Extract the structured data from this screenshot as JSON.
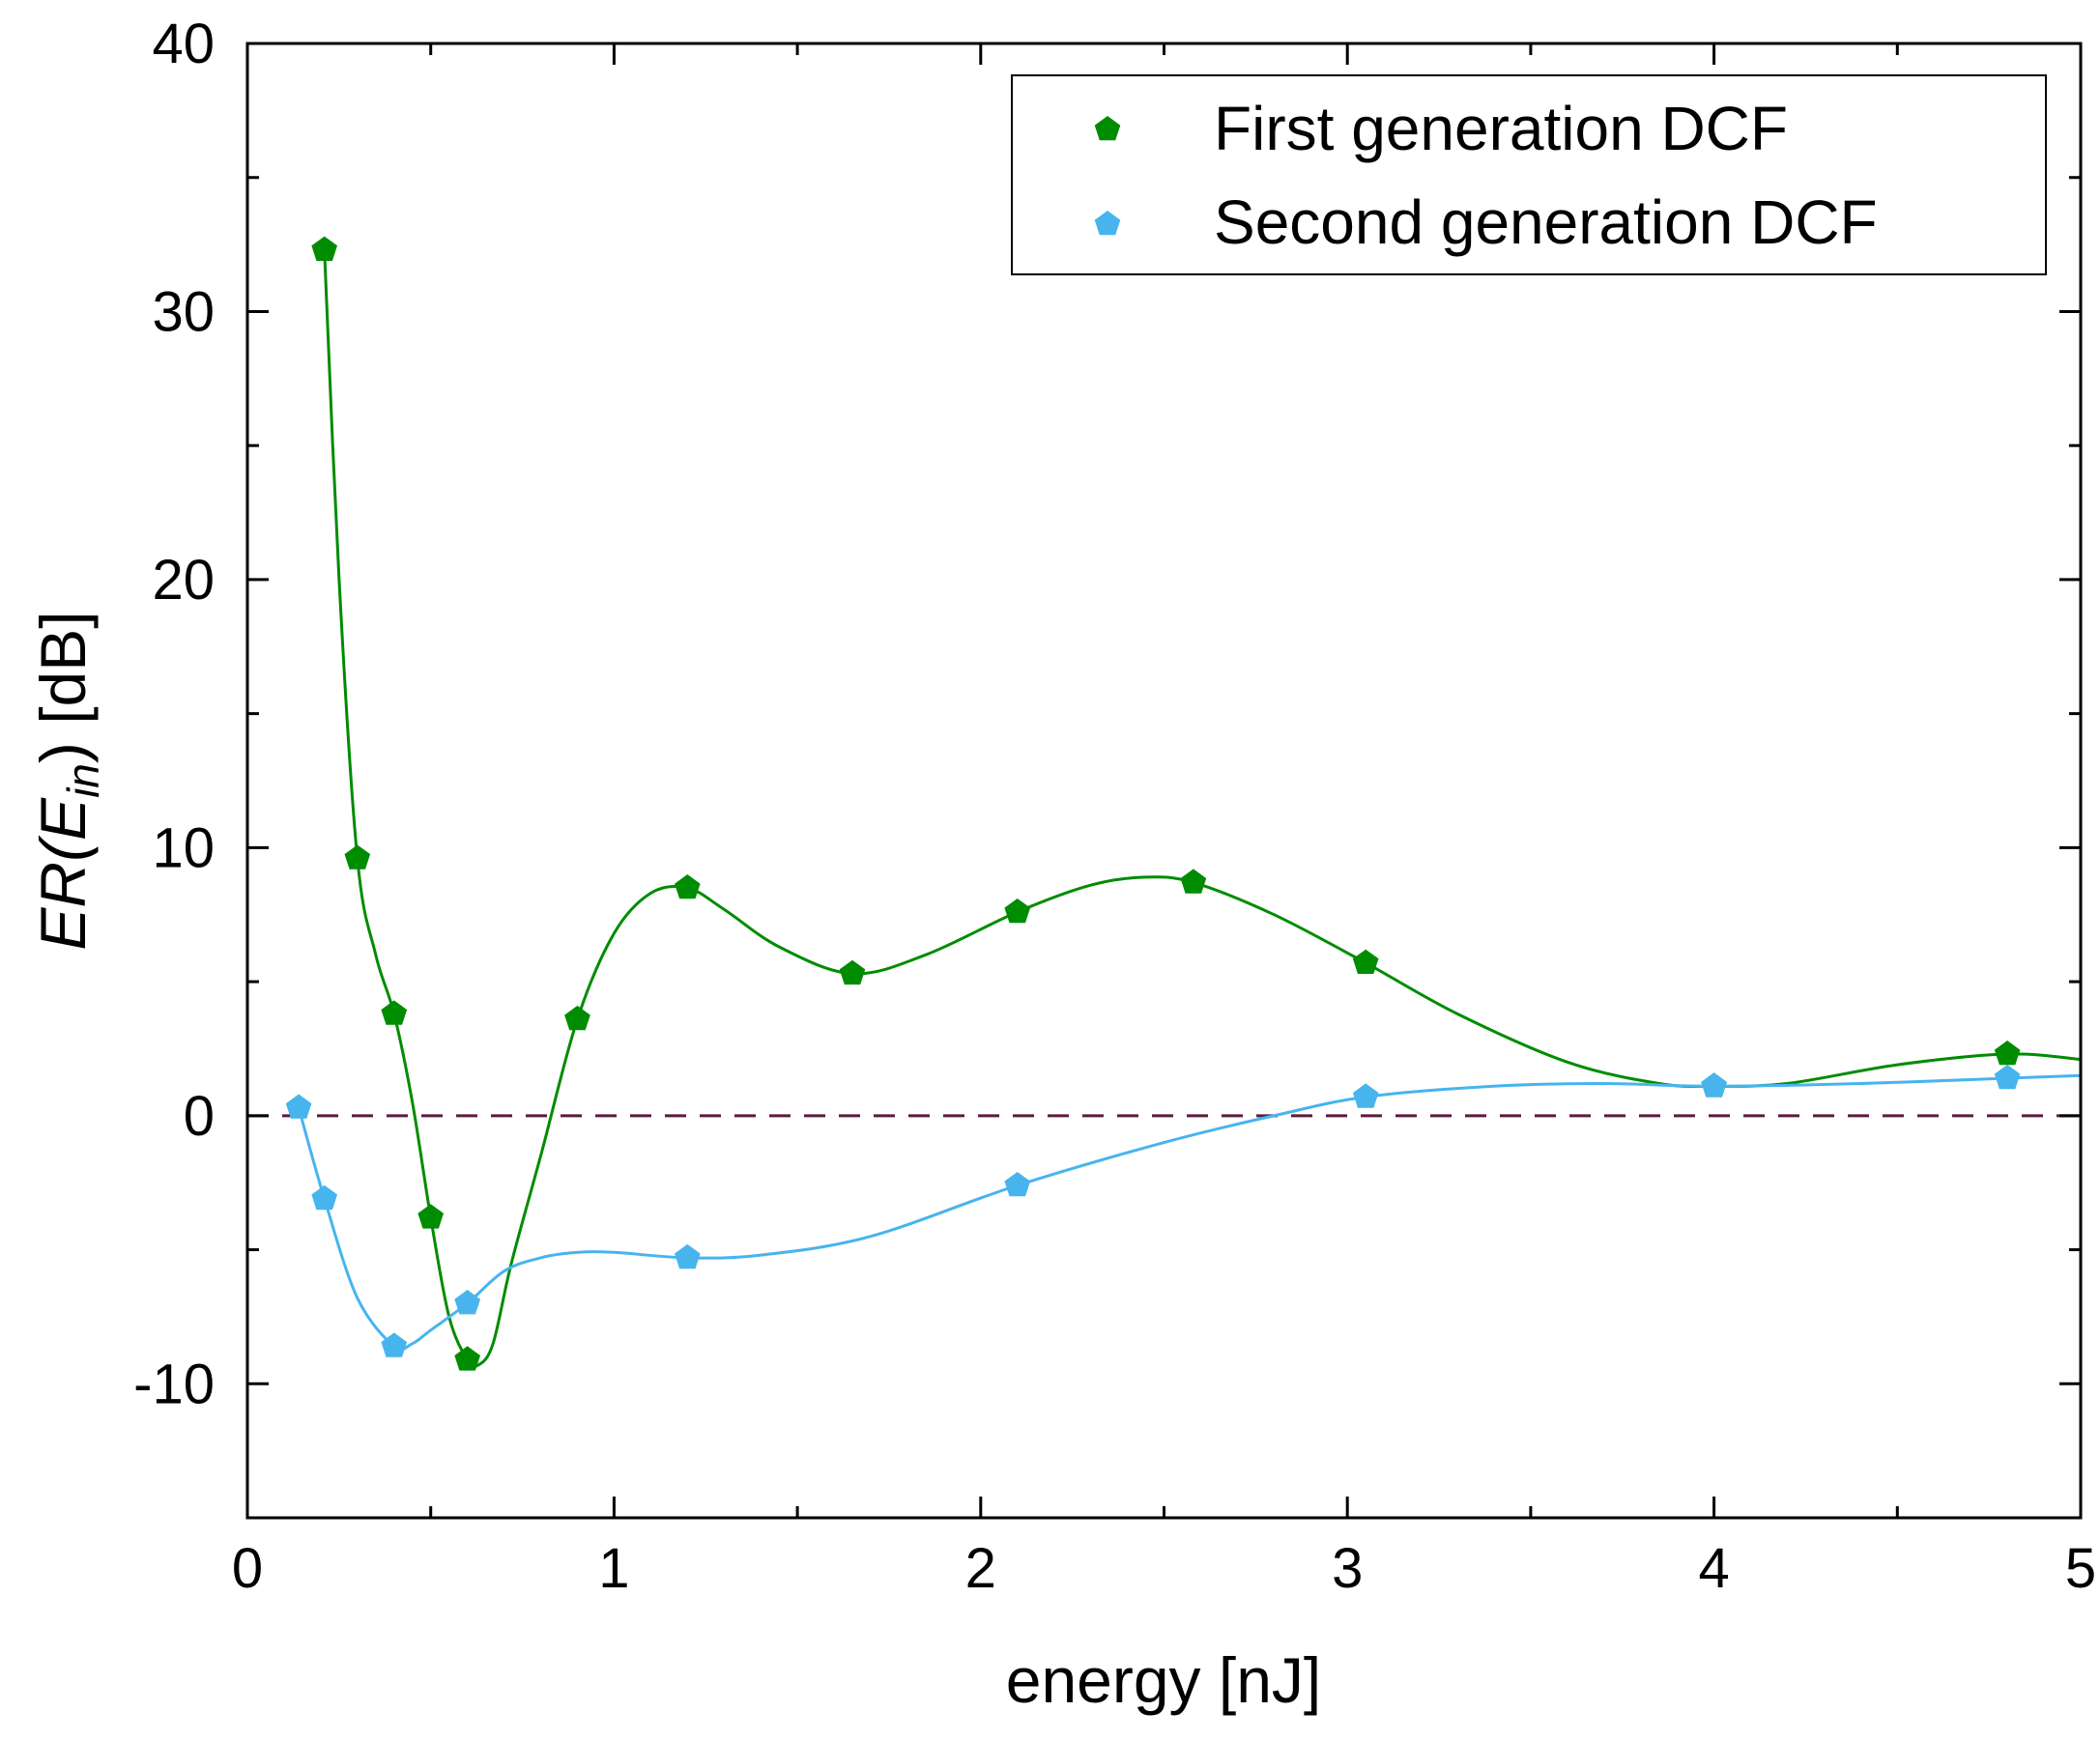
{
  "chart_data": {
    "type": "line",
    "title": "",
    "xlabel": "energy [nJ]",
    "ylabel": {
      "prefix": "ER(E",
      "subscript": "in",
      "suffix": ") [dB]"
    },
    "xlim": [
      0,
      5
    ],
    "ylim": [
      -15,
      40
    ],
    "x_ticks": [
      0,
      1,
      2,
      3,
      4,
      5
    ],
    "x_tick_labels": [
      "0",
      "1",
      "2",
      "3",
      "4",
      "5"
    ],
    "y_ticks": [
      -10,
      0,
      10,
      20,
      30,
      40
    ],
    "y_tick_labels": [
      "-10",
      "0",
      "10",
      "20",
      "30",
      "40"
    ],
    "grid": false,
    "reference_line": {
      "y": 0,
      "style": "dashed",
      "color": "#5c1a3d"
    },
    "legend_position": "top-right",
    "series": [
      {
        "name": "First generation DCF",
        "color": "#008c00",
        "marker": "pentagon",
        "points": [
          [
            0.21,
            32.3
          ],
          [
            0.3,
            9.6
          ],
          [
            0.4,
            3.8
          ],
          [
            0.5,
            -3.8
          ],
          [
            0.6,
            -9.1
          ],
          [
            0.9,
            3.6
          ],
          [
            1.2,
            8.5
          ],
          [
            1.65,
            5.3
          ],
          [
            2.1,
            7.6
          ],
          [
            2.58,
            8.7
          ],
          [
            3.05,
            5.7
          ],
          [
            4.0,
            1.1
          ],
          [
            4.8,
            2.3
          ]
        ],
        "curve": [
          [
            0.21,
            32.3
          ],
          [
            0.25,
            20.0
          ],
          [
            0.3,
            9.6
          ],
          [
            0.35,
            6.0
          ],
          [
            0.4,
            3.8
          ],
          [
            0.45,
            0.5
          ],
          [
            0.5,
            -3.8
          ],
          [
            0.55,
            -7.5
          ],
          [
            0.6,
            -9.1
          ],
          [
            0.63,
            -9.3
          ],
          [
            0.67,
            -8.5
          ],
          [
            0.72,
            -5.5
          ],
          [
            0.8,
            -1.5
          ],
          [
            0.9,
            3.6
          ],
          [
            1.0,
            6.8
          ],
          [
            1.1,
            8.3
          ],
          [
            1.2,
            8.5
          ],
          [
            1.3,
            7.7
          ],
          [
            1.45,
            6.3
          ],
          [
            1.65,
            5.3
          ],
          [
            1.85,
            6.0
          ],
          [
            2.1,
            7.6
          ],
          [
            2.3,
            8.6
          ],
          [
            2.45,
            8.9
          ],
          [
            2.58,
            8.7
          ],
          [
            2.8,
            7.5
          ],
          [
            3.05,
            5.7
          ],
          [
            3.3,
            3.8
          ],
          [
            3.6,
            2.0
          ],
          [
            3.85,
            1.2
          ],
          [
            4.0,
            1.1
          ],
          [
            4.2,
            1.2
          ],
          [
            4.5,
            1.9
          ],
          [
            4.8,
            2.3
          ],
          [
            5.0,
            2.1
          ]
        ]
      },
      {
        "name": "Second generation DCF",
        "color": "#47b4ee",
        "marker": "pentagon",
        "points": [
          [
            0.14,
            0.3
          ],
          [
            0.21,
            -3.1
          ],
          [
            0.4,
            -8.6
          ],
          [
            0.6,
            -7.0
          ],
          [
            1.2,
            -5.3
          ],
          [
            2.1,
            -2.6
          ],
          [
            3.05,
            0.7
          ],
          [
            4.0,
            1.1
          ],
          [
            4.8,
            1.4
          ]
        ],
        "curve": [
          [
            0.14,
            0.3
          ],
          [
            0.21,
            -3.1
          ],
          [
            0.3,
            -6.8
          ],
          [
            0.4,
            -8.6
          ],
          [
            0.45,
            -8.5
          ],
          [
            0.5,
            -8.0
          ],
          [
            0.6,
            -7.0
          ],
          [
            0.7,
            -5.8
          ],
          [
            0.8,
            -5.3
          ],
          [
            0.9,
            -5.1
          ],
          [
            1.0,
            -5.1
          ],
          [
            1.2,
            -5.3
          ],
          [
            1.4,
            -5.2
          ],
          [
            1.7,
            -4.5
          ],
          [
            2.1,
            -2.6
          ],
          [
            2.5,
            -1.0
          ],
          [
            2.8,
            0.0
          ],
          [
            3.05,
            0.7
          ],
          [
            3.4,
            1.1
          ],
          [
            3.7,
            1.2
          ],
          [
            4.0,
            1.1
          ],
          [
            4.4,
            1.2
          ],
          [
            4.8,
            1.4
          ],
          [
            5.0,
            1.5
          ]
        ]
      }
    ]
  }
}
